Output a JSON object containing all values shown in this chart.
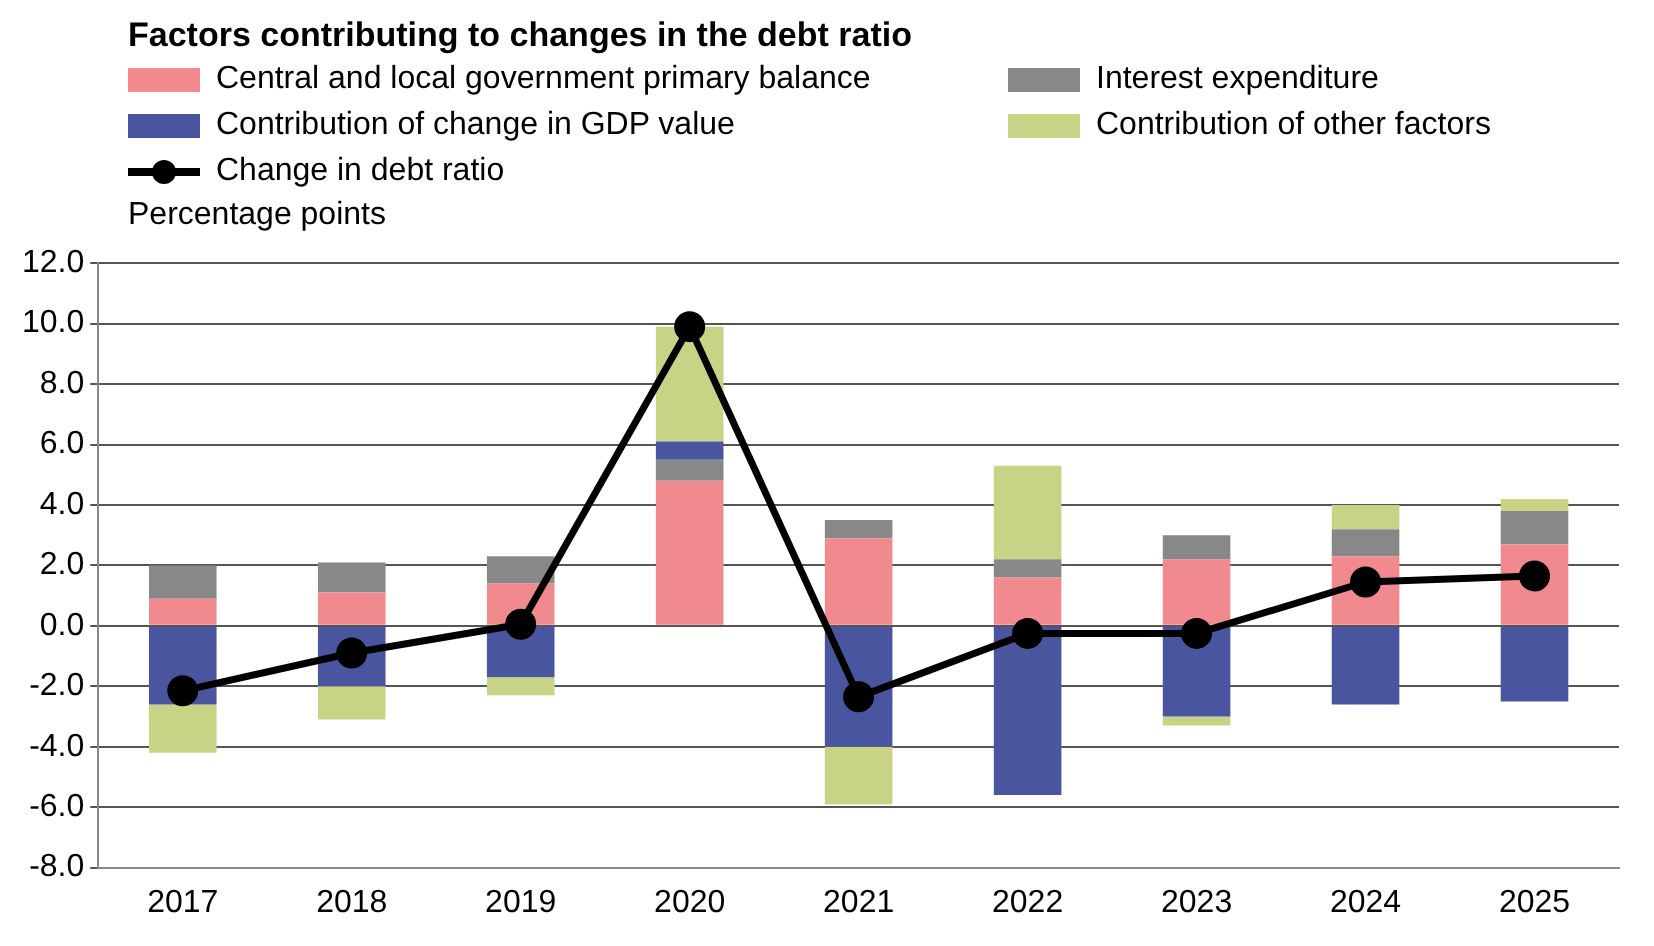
{
  "chart_data": {
    "type": "bar",
    "title": "Factors contributing to changes in the debt ratio",
    "ylabel": "Percentage points",
    "categories": [
      "2017",
      "2018",
      "2019",
      "2020",
      "2021",
      "2022",
      "2023",
      "2024",
      "2025"
    ],
    "stacked": true,
    "series": [
      {
        "name": "Central and local government primary balance",
        "color": "#f08a8f",
        "values": [
          0.9,
          1.1,
          1.4,
          4.8,
          2.9,
          1.6,
          2.2,
          2.3,
          2.7
        ]
      },
      {
        "name": "Interest expenditure",
        "color": "#888888",
        "values": [
          1.1,
          1.0,
          0.9,
          0.7,
          0.6,
          0.6,
          0.8,
          0.9,
          1.1
        ]
      },
      {
        "name": "Contribution of change in GDP value",
        "color": "#4a55a0",
        "values": [
          -2.6,
          -2.0,
          -1.7,
          0.6,
          -4.0,
          -5.6,
          -3.0,
          -2.6,
          -2.5
        ]
      },
      {
        "name": "Contribution of other factors",
        "color": "#c8d386",
        "values": [
          -1.6,
          -1.1,
          -0.6,
          3.8,
          -1.9,
          3.1,
          -0.3,
          0.8,
          0.4
        ]
      },
      {
        "name": "Change in debt ratio",
        "type": "line",
        "color": "#000000",
        "values": [
          -2.15,
          -0.9,
          0.05,
          9.9,
          -2.35,
          -0.25,
          -0.25,
          1.45,
          1.65
        ]
      }
    ],
    "ylim": [
      -8,
      12
    ],
    "yticks": [
      {
        "value": -8,
        "label": "-8.0"
      },
      {
        "value": -6,
        "label": "-6.0"
      },
      {
        "value": -4,
        "label": "-4.0"
      },
      {
        "value": -2,
        "label": "-2.0"
      },
      {
        "value": 0,
        "label": "0.0"
      },
      {
        "value": 2,
        "label": "2.0"
      },
      {
        "value": 4,
        "label": "4.0"
      },
      {
        "value": 6,
        "label": "6.0"
      },
      {
        "value": 8,
        "label": "8.0"
      },
      {
        "value": 10,
        "label": "10.0"
      },
      {
        "value": 12,
        "label": "12.0"
      }
    ],
    "grid": "y",
    "legend": "top",
    "marker": "circle",
    "line_style": "solid"
  }
}
